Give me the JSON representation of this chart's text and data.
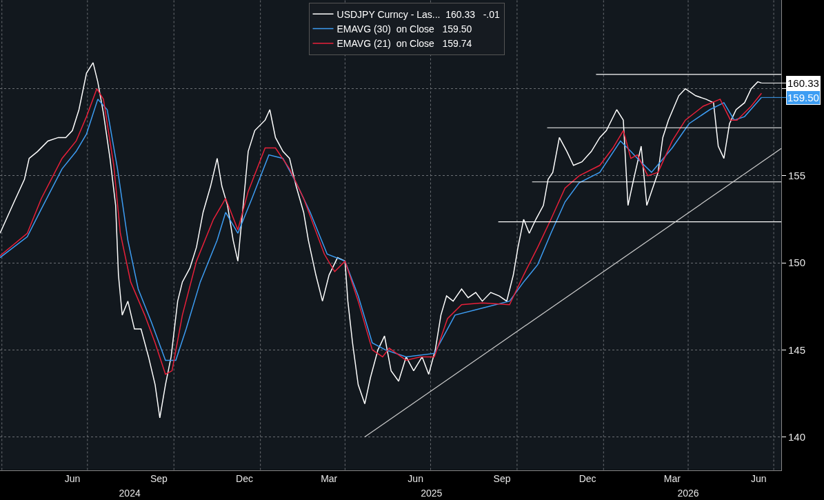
{
  "chart_data": {
    "type": "line",
    "x": [
      "2024-03-30",
      "2024-04-14",
      "2024-04-25",
      "2024-04-30",
      "2024-05-09",
      "2024-05-20",
      "2024-05-31",
      "2024-06-08",
      "2024-06-15",
      "2024-06-22",
      "2024-06-30",
      "2024-07-07",
      "2024-07-12",
      "2024-07-18",
      "2024-07-25",
      "2024-07-31",
      "2024-08-03",
      "2024-08-07",
      "2024-08-13",
      "2024-08-20",
      "2024-08-27",
      "2024-09-04",
      "2024-09-11",
      "2024-09-16",
      "2024-09-22",
      "2024-09-28",
      "2024-10-05",
      "2024-10-10",
      "2024-10-18",
      "2024-10-25",
      "2024-11-01",
      "2024-11-09",
      "2024-11-16",
      "2024-11-21",
      "2024-11-27",
      "2024-12-03",
      "2024-12-08",
      "2024-12-13",
      "2024-12-19",
      "2024-12-26",
      "2025-01-06",
      "2025-01-11",
      "2025-01-17",
      "2025-01-25",
      "2025-02-01",
      "2025-02-08",
      "2025-02-16",
      "2025-02-21",
      "2025-03-01",
      "2025-03-08",
      "2025-03-15",
      "2025-03-24",
      "2025-04-01",
      "2025-04-04",
      "2025-04-09",
      "2025-04-15",
      "2025-04-22",
      "2025-04-28",
      "2025-05-06",
      "2025-05-13",
      "2025-05-20",
      "2025-05-28",
      "2025-06-05",
      "2025-06-13",
      "2025-06-22",
      "2025-06-29",
      "2025-07-06",
      "2025-07-12",
      "2025-07-18",
      "2025-07-25",
      "2025-08-03",
      "2025-08-10",
      "2025-08-18",
      "2025-08-25",
      "2025-09-03",
      "2025-09-12",
      "2025-09-20",
      "2025-09-27",
      "2025-10-02",
      "2025-10-08",
      "2025-10-14",
      "2025-10-21",
      "2025-10-29",
      "2025-11-03",
      "2025-11-08",
      "2025-11-15",
      "2025-11-23",
      "2025-11-30",
      "2025-12-09",
      "2025-12-19",
      "2025-12-28",
      "2026-01-04",
      "2026-01-15",
      "2026-01-22",
      "2026-01-27",
      "2026-02-02",
      "2026-02-10",
      "2026-02-16",
      "2026-02-21",
      "2026-02-28",
      "2026-03-05",
      "2026-03-11",
      "2026-03-22",
      "2026-03-29",
      "2026-04-09",
      "2026-04-20",
      "2026-04-28",
      "2026-05-03",
      "2026-05-09",
      "2026-05-15",
      "2026-05-22",
      "2026-05-31",
      "2026-06-07",
      "2026-06-14",
      "2026-06-18"
    ],
    "series": [
      {
        "name": "USDJPY Curncy - Las...  160.33   -.01",
        "color": "#ffffff",
        "values": [
          151.7,
          153.5,
          154.8,
          156.0,
          156.4,
          157.0,
          157.2,
          157.2,
          157.6,
          158.8,
          160.9,
          161.5,
          160.4,
          158.6,
          156.0,
          153.3,
          149.3,
          147.0,
          147.8,
          146.2,
          146.2,
          144.6,
          143.0,
          141.1,
          143.0,
          144.6,
          147.8,
          148.9,
          149.7,
          150.9,
          152.9,
          154.4,
          156.0,
          154.4,
          153.3,
          151.3,
          150.1,
          152.9,
          156.4,
          157.6,
          158.2,
          158.8,
          157.2,
          156.4,
          156.0,
          154.4,
          152.9,
          151.3,
          149.3,
          147.8,
          149.3,
          150.3,
          150.1,
          147.8,
          145.4,
          143.0,
          141.9,
          143.4,
          145.0,
          145.8,
          143.8,
          143.2,
          144.6,
          143.8,
          144.6,
          143.6,
          145.0,
          147.0,
          148.1,
          147.8,
          148.5,
          148.0,
          148.3,
          147.8,
          148.3,
          148.1,
          147.8,
          149.3,
          150.9,
          152.5,
          151.7,
          152.5,
          153.3,
          154.8,
          155.2,
          157.2,
          156.4,
          155.6,
          155.8,
          156.4,
          157.2,
          157.6,
          158.8,
          158.2,
          153.3,
          154.8,
          156.7,
          153.3,
          154.1,
          155.2,
          157.2,
          158.2,
          159.6,
          160.0,
          159.6,
          159.4,
          159.2,
          156.7,
          156.0,
          158.0,
          158.8,
          159.2,
          160.0,
          160.4,
          160.33
        ]
      },
      {
        "name": "EMAVG (30)  on Close   159.50",
        "color": "#3d9df3",
        "x": [
          "2024-03-30",
          "2024-04-28",
          "2024-05-13",
          "2024-06-04",
          "2024-06-19",
          "2024-06-30",
          "2024-07-12",
          "2024-07-22",
          "2024-08-02",
          "2024-08-13",
          "2024-08-24",
          "2024-09-07",
          "2024-09-22",
          "2024-10-03",
          "2024-10-14",
          "2024-10-29",
          "2024-11-16",
          "2024-11-25",
          "2024-12-08",
          "2024-12-23",
          "2025-01-10",
          "2025-01-25",
          "2025-02-08",
          "2025-02-23",
          "2025-03-13",
          "2025-04-01",
          "2025-04-15",
          "2025-04-30",
          "2025-05-14",
          "2025-06-05",
          "2025-07-05",
          "2025-07-27",
          "2025-08-25",
          "2025-09-23",
          "2025-10-08",
          "2025-10-23",
          "2025-11-06",
          "2025-11-21",
          "2025-12-06",
          "2025-12-28",
          "2026-01-19",
          "2026-01-30",
          "2026-02-06",
          "2026-02-21",
          "2026-03-15",
          "2026-04-02",
          "2026-04-24",
          "2026-05-09",
          "2026-05-20",
          "2026-05-31",
          "2026-06-18"
        ],
        "values": [
          150.3,
          151.5,
          153.1,
          155.4,
          156.4,
          157.4,
          159.4,
          158.8,
          155.4,
          151.3,
          148.5,
          146.6,
          144.4,
          144.4,
          146.2,
          148.9,
          151.3,
          152.9,
          151.7,
          153.7,
          156.2,
          156.0,
          154.6,
          152.9,
          150.5,
          150.1,
          148.1,
          145.4,
          145.0,
          144.6,
          144.8,
          147.0,
          147.4,
          147.8,
          148.9,
          149.9,
          151.7,
          153.5,
          154.6,
          155.2,
          157.0,
          156.4,
          156.0,
          155.2,
          156.6,
          158.0,
          158.8,
          159.2,
          158.2,
          158.4,
          159.5
        ]
      },
      {
        "name": "EMAVG (21)  on Close   159.74",
        "color": "#e8203a",
        "x": [
          "2024-03-30",
          "2024-04-28",
          "2024-05-13",
          "2024-06-04",
          "2024-06-19",
          "2024-06-30",
          "2024-07-11",
          "2024-07-18",
          "2024-07-29",
          "2024-08-05",
          "2024-08-16",
          "2024-08-31",
          "2024-09-11",
          "2024-09-22",
          "2024-09-29",
          "2024-10-10",
          "2024-10-25",
          "2024-11-12",
          "2024-11-25",
          "2024-12-08",
          "2024-12-19",
          "2025-01-06",
          "2025-01-17",
          "2025-02-01",
          "2025-02-16",
          "2025-03-10",
          "2025-03-21",
          "2025-04-01",
          "2025-04-15",
          "2025-04-30",
          "2025-05-11",
          "2025-05-18",
          "2025-06-05",
          "2025-06-20",
          "2025-07-05",
          "2025-07-19",
          "2025-08-03",
          "2025-08-25",
          "2025-09-23",
          "2025-10-08",
          "2025-10-23",
          "2025-11-06",
          "2025-11-21",
          "2025-12-06",
          "2025-12-28",
          "2026-01-11",
          "2026-01-22",
          "2026-01-30",
          "2026-02-06",
          "2026-02-17",
          "2026-02-28",
          "2026-03-15",
          "2026-03-29",
          "2026-04-17",
          "2026-05-05",
          "2026-05-16",
          "2026-05-23",
          "2026-06-07",
          "2026-06-18"
        ],
        "values": [
          150.4,
          151.7,
          153.7,
          156.0,
          157.0,
          158.4,
          160.0,
          159.4,
          155.6,
          151.7,
          148.9,
          147.0,
          145.4,
          143.6,
          143.8,
          147.0,
          150.1,
          152.5,
          153.7,
          151.9,
          154.1,
          156.6,
          156.6,
          155.4,
          153.7,
          150.5,
          149.5,
          150.1,
          147.8,
          145.0,
          144.6,
          145.1,
          144.4,
          144.6,
          144.6,
          146.8,
          147.6,
          147.7,
          147.6,
          149.3,
          150.9,
          152.5,
          154.3,
          155.0,
          155.6,
          156.6,
          157.6,
          156.0,
          156.2,
          155.0,
          155.2,
          157.0,
          158.2,
          159.0,
          159.4,
          158.2,
          158.2,
          159.0,
          159.74
        ]
      },
      {
        "color": "#ffffff",
        "x": [
          "2025-12-24",
          "2026-07-09"
        ],
        "values": [
          160.83,
          160.83
        ]
      },
      {
        "color": "#ffffff",
        "x": [
          "2025-11-02",
          "2026-07-09"
        ],
        "values": [
          157.76,
          157.76
        ]
      },
      {
        "color": "#ffffff",
        "x": [
          "2025-10-17",
          "2026-07-09"
        ],
        "values": [
          154.65,
          154.65
        ]
      },
      {
        "color": "#ffffff",
        "x": [
          "2025-09-11",
          "2026-07-09"
        ],
        "values": [
          152.36,
          152.36
        ]
      },
      {
        "color": "#cccccc",
        "x": [
          "2025-04-22",
          "2026-07-09"
        ],
        "values": [
          140.0,
          156.57
        ]
      }
    ],
    "annotations": [
      {
        "text": "160.33",
        "x": "2026-06-18",
        "y": 160.33
      },
      {
        "text": "159.50",
        "x": "2026-06-18",
        "y": 159.5
      }
    ],
    "xlim": [
      "2024-03-30",
      "2026-07-09"
    ],
    "xticks": [
      {
        "value": "2024-04-01",
        "label": null
      },
      {
        "value": "2024-06-15",
        "label": "Jun"
      },
      {
        "value": "2024-07-01",
        "label": null
      },
      {
        "value": "2024-09-15",
        "label": "Sep"
      },
      {
        "value": "2024-10-01",
        "label": null
      },
      {
        "value": "2024-12-15",
        "label": "Dec"
      },
      {
        "value": "2025-01-01",
        "label": null
      },
      {
        "value": "2025-03-15",
        "label": "Mar"
      },
      {
        "value": "2025-04-01",
        "label": null
      },
      {
        "value": "2025-06-15",
        "label": "Jun"
      },
      {
        "value": "2025-07-01",
        "label": null
      },
      {
        "value": "2025-09-15",
        "label": "Sep"
      },
      {
        "value": "2025-10-01",
        "label": null
      },
      {
        "value": "2025-12-15",
        "label": "Dec"
      },
      {
        "value": "2026-01-01",
        "label": null
      },
      {
        "value": "2026-03-15",
        "label": "Mar"
      },
      {
        "value": "2026-04-01",
        "label": null
      },
      {
        "value": "2026-06-15",
        "label": "Jun"
      },
      {
        "value": "2026-07-01",
        "label": null
      }
    ],
    "x2lim": [
      "2024-03-30",
      "2026-07-09"
    ],
    "x2ticks": [
      {
        "value": "2024-08-15",
        "label": "2024"
      },
      {
        "value": "2025-07-02",
        "label": "2025"
      },
      {
        "value": "2026-04-01",
        "label": "2026"
      }
    ],
    "ylim": [
      138.1,
      165.1
    ],
    "yticks": [
      140,
      145,
      150,
      155,
      {
        "value": 160,
        "label": null
      }
    ],
    "grid": true,
    "legend": "top",
    "marker": "none",
    "line_style": "solid"
  }
}
